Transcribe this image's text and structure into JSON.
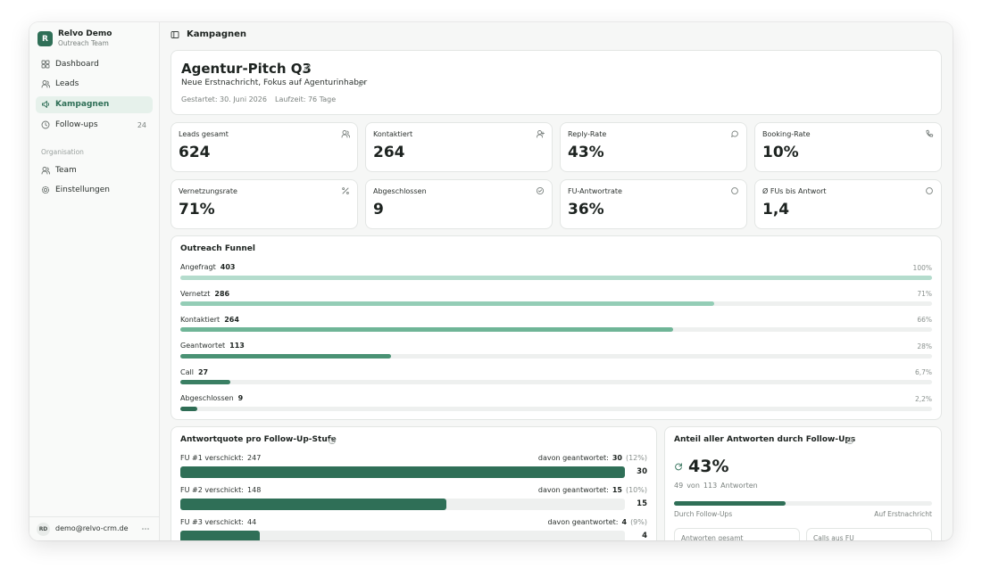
{
  "sidebar": {
    "logo": "R",
    "workspace": "Relvo Demo",
    "team": "Outreach Team",
    "nav": [
      {
        "label": "Dashboard"
      },
      {
        "label": "Leads"
      },
      {
        "label": "Kampagnen",
        "active": true
      },
      {
        "label": "Follow-ups",
        "badge": "24"
      }
    ],
    "section": "Organisation",
    "org_nav": [
      {
        "label": "Team"
      },
      {
        "label": "Einstellungen"
      }
    ],
    "user": {
      "initials": "RD",
      "email": "demo@relvo-crm.de"
    }
  },
  "header": {
    "title": "Kampagnen"
  },
  "campaign": {
    "name": "Agentur-Pitch Q3",
    "description": "Neue Erstnachricht, Fokus auf Agenturinhaber",
    "started": "Gestartet: 30. Juni 2026",
    "duration": "Laufzeit: 76 Tage"
  },
  "kpis": [
    {
      "label": "Leads gesamt",
      "value": "624"
    },
    {
      "label": "Kontaktiert",
      "value": "264"
    },
    {
      "label": "Reply-Rate",
      "value": "43%"
    },
    {
      "label": "Booking-Rate",
      "value": "10%"
    },
    {
      "label": "Vernetzungsrate",
      "value": "71%"
    },
    {
      "label": "Abgeschlossen",
      "value": "9"
    },
    {
      "label": "FU-Antwortrate",
      "value": "36%"
    },
    {
      "label": "Ø FUs bis Antwort",
      "value": "1,4"
    }
  ],
  "funnel": {
    "title": "Outreach Funnel",
    "stages": [
      {
        "label": "Angefragt",
        "count": 403,
        "share": "100%",
        "color": "#b4dccd"
      },
      {
        "label": "Vernetzt",
        "count": 286,
        "share": "71%",
        "color": "#94cdb6"
      },
      {
        "label": "Kontaktiert",
        "count": 264,
        "share": "66%",
        "color": "#6fb597"
      },
      {
        "label": "Geantwortet",
        "count": 113,
        "share": "28%",
        "color": "#4a9274"
      },
      {
        "label": "Call",
        "count": 27,
        "share": "6,7%",
        "color": "#3a7f63"
      },
      {
        "label": "Abgeschlossen",
        "count": 9,
        "share": "2,2%",
        "color": "#2f6d55"
      }
    ]
  },
  "fu_steps": {
    "title": "Antwortquote pro Follow-Up-Stufe",
    "steps": [
      {
        "label": "FU #1 verschickt:",
        "sent": 247,
        "answered_label": "davon geantwortet:",
        "answered": 30,
        "rate": "(12%)"
      },
      {
        "label": "FU #2 verschickt:",
        "sent": 148,
        "answered_label": "davon geantwortet:",
        "answered": 15,
        "rate": "(10%)"
      },
      {
        "label": "FU #3 verschickt:",
        "sent": 44,
        "answered_label": "davon geantwortet:",
        "answered": 4,
        "rate": "(9%)"
      }
    ]
  },
  "fu_share": {
    "title": "Anteil aller Antworten durch Follow-Ups",
    "share": "43%",
    "detail": {
      "fu": 49,
      "of": "von",
      "total": 113,
      "unit": "Antworten"
    },
    "legend_left": "Durch Follow-Ups",
    "legend_right": "Auf Erstnachricht",
    "stats": [
      {
        "label": "Antworten gesamt"
      },
      {
        "label": "Calls aus FU"
      }
    ]
  }
}
